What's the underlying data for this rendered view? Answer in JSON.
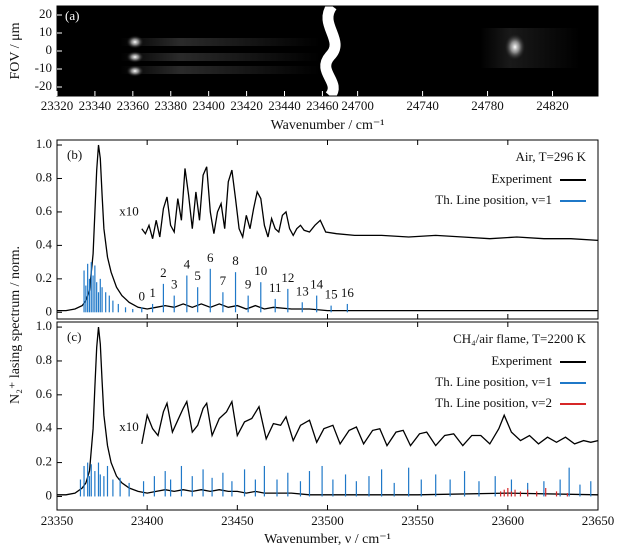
{
  "chart_data": [
    {
      "type": "image",
      "title": "(a)",
      "ylabel": "FOV / μm",
      "xlabel": "Wavenumber / cm⁻¹",
      "xlim": [
        23320,
        23464
      ],
      "xticks": [
        23320,
        23340,
        23360,
        23380,
        23400,
        23420,
        23440,
        23460
      ],
      "x2lim": [
        24683,
        24848
      ],
      "x2ticks": [
        24700,
        24740,
        24780,
        24820
      ],
      "ylim": [
        -25,
        25
      ],
      "yticks": [
        20,
        10,
        0,
        -10,
        -20
      ]
    },
    {
      "type": "line",
      "title": "(b)",
      "ylabel": "N₂⁺ lasing spectrum / norm.",
      "legend_title": "Air, T=296 K",
      "legend": "upper right",
      "xlim": [
        23350,
        23650
      ],
      "ylim": [
        -0.04,
        1.03
      ],
      "yticks": [
        0,
        0.2,
        0.4,
        0.6,
        0.8,
        {
          "value": 1,
          "label": "1.0"
        }
      ],
      "series": [
        {
          "name": "Experiment",
          "color": "#000000",
          "kind": "line",
          "x": [
            23350,
            23355,
            23360,
            23364,
            23366,
            23368,
            23370,
            23371,
            23372,
            23373,
            23374,
            23375,
            23376,
            23378,
            23380,
            23383,
            23386,
            23390,
            23395,
            23400,
            23405,
            23410,
            23415,
            23420,
            23425,
            23430,
            23435,
            23440,
            23445,
            23450,
            23455,
            23460,
            23465,
            23470,
            23480,
            23490,
            23500,
            23520,
            23550,
            23600,
            23650
          ],
          "values": [
            0.01,
            0.01,
            0.02,
            0.04,
            0.07,
            0.13,
            0.35,
            0.6,
            0.85,
            1.0,
            0.92,
            0.7,
            0.5,
            0.33,
            0.24,
            0.15,
            0.1,
            0.06,
            0.03,
            0.02,
            0.03,
            0.04,
            0.03,
            0.05,
            0.03,
            0.05,
            0.03,
            0.05,
            0.03,
            0.04,
            0.02,
            0.04,
            0.02,
            0.03,
            0.02,
            0.02,
            0.01,
            0.01,
            0.01,
            0.01,
            0.01
          ]
        },
        {
          "name": "Th. Line position, v=1",
          "color": "#1f78c8",
          "kind": "stick",
          "x": [
            23365,
            23366,
            23367,
            23368,
            23369,
            23370,
            23371,
            23372,
            23373,
            23374,
            23375,
            23377,
            23379,
            23381,
            23384,
            23388,
            23392,
            23397,
            23403,
            23409,
            23415,
            23422,
            23428,
            23435,
            23442,
            23449,
            23456,
            23463,
            23471,
            23478,
            23486,
            23494,
            23502,
            23511
          ],
          "values": [
            0.25,
            0.16,
            0.29,
            0.2,
            0.3,
            0.22,
            0.28,
            0.18,
            0.12,
            0.2,
            0.15,
            0.12,
            0.1,
            0.07,
            0.05,
            0.03,
            0.02,
            0.03,
            0.05,
            0.17,
            0.1,
            0.22,
            0.15,
            0.26,
            0.12,
            0.24,
            0.1,
            0.18,
            0.08,
            0.14,
            0.06,
            0.1,
            0.04,
            0.05
          ],
          "labels": [
            null,
            null,
            null,
            null,
            null,
            null,
            null,
            null,
            null,
            null,
            null,
            null,
            null,
            null,
            null,
            null,
            null,
            0,
            1,
            2,
            3,
            4,
            5,
            6,
            7,
            8,
            9,
            10,
            11,
            12,
            13,
            14,
            15,
            16
          ]
        }
      ],
      "scaled_trace": {
        "label": "x10",
        "color": "#000000",
        "x": [
          23397,
          23399,
          23401,
          23403,
          23405,
          23407,
          23409,
          23411,
          23413,
          23415,
          23417,
          23419,
          23421,
          23423,
          23425,
          23427,
          23429,
          23431,
          23433,
          23435,
          23437,
          23439,
          23441,
          23443,
          23445,
          23447,
          23449,
          23451,
          23453,
          23455,
          23457,
          23459,
          23461,
          23463,
          23465,
          23467,
          23469,
          23471,
          23473,
          23475,
          23477,
          23479,
          23481,
          23483,
          23485,
          23487,
          23490,
          23493,
          23496,
          23499,
          23505,
          23515,
          23530,
          23545,
          23560,
          23575,
          23590,
          23605,
          23620,
          23635,
          23650
        ],
        "values": [
          0.5,
          0.47,
          0.52,
          0.44,
          0.55,
          0.45,
          0.62,
          0.69,
          0.52,
          0.48,
          0.68,
          0.55,
          0.86,
          0.7,
          0.5,
          0.72,
          0.55,
          0.82,
          0.87,
          0.6,
          0.47,
          0.6,
          0.65,
          0.5,
          0.78,
          0.85,
          0.68,
          0.5,
          0.45,
          0.58,
          0.5,
          0.62,
          0.72,
          0.68,
          0.52,
          0.45,
          0.56,
          0.5,
          0.48,
          0.58,
          0.6,
          0.5,
          0.46,
          0.5,
          0.52,
          0.49,
          0.48,
          0.52,
          0.55,
          0.48,
          0.47,
          0.46,
          0.46,
          0.45,
          0.46,
          0.45,
          0.44,
          0.45,
          0.44,
          0.44,
          0.43
        ]
      }
    },
    {
      "type": "line",
      "title": "(c)",
      "xlabel": "Wavenumber, ν / cm⁻¹",
      "legend_title": "CH₄/air flame, T=2200 K",
      "legend": "upper right",
      "xlim": [
        23350,
        23650
      ],
      "xticks": [
        23350,
        23400,
        23450,
        23500,
        23550,
        23600,
        23650
      ],
      "ylim": [
        -0.08,
        1.03
      ],
      "yticks": [
        0,
        0.2,
        0.4,
        0.6,
        0.8,
        {
          "value": 1,
          "label": "1.0"
        }
      ],
      "series": [
        {
          "name": "Experiment",
          "color": "#000000",
          "kind": "line",
          "x": [
            23350,
            23355,
            23360,
            23364,
            23366,
            23368,
            23370,
            23371,
            23372,
            23373,
            23374,
            23375,
            23376,
            23378,
            23380,
            23383,
            23386,
            23390,
            23395,
            23400,
            23405,
            23410,
            23415,
            23420,
            23425,
            23430,
            23435,
            23440,
            23445,
            23450,
            23455,
            23460,
            23465,
            23470,
            23480,
            23490,
            23500,
            23520,
            23550,
            23600,
            23650
          ],
          "values": [
            0.01,
            0.01,
            0.02,
            0.05,
            0.08,
            0.15,
            0.4,
            0.65,
            0.88,
            1.0,
            0.9,
            0.68,
            0.48,
            0.3,
            0.2,
            0.12,
            0.08,
            0.05,
            0.03,
            0.02,
            0.03,
            0.04,
            0.03,
            0.04,
            0.03,
            0.04,
            0.03,
            0.04,
            0.03,
            0.03,
            0.02,
            0.03,
            0.02,
            0.02,
            0.02,
            0.01,
            0.01,
            0.01,
            0.01,
            0.02,
            0.01
          ]
        },
        {
          "name": "Th. Line position, v=1",
          "color": "#1f78c8",
          "kind": "stick",
          "x": [
            23363,
            23365,
            23367,
            23368,
            23369,
            23371,
            23373,
            23374,
            23376,
            23378,
            23381,
            23385,
            23390,
            23398,
            23404,
            23410,
            23413,
            23419,
            23425,
            23431,
            23436,
            23442,
            23447,
            23454,
            23460,
            23465,
            23472,
            23478,
            23485,
            23490,
            23497,
            23503,
            23510,
            23516,
            23523,
            23530,
            23537,
            23545,
            23552,
            23560,
            23568,
            23576,
            23584,
            23593,
            23602,
            23611,
            23620,
            23629,
            23634,
            23640,
            23646
          ],
          "values": [
            0.1,
            0.18,
            0.2,
            0.12,
            0.19,
            0.15,
            0.2,
            0.13,
            0.12,
            0.18,
            0.1,
            0.11,
            0.08,
            0.09,
            0.12,
            0.15,
            0.1,
            0.18,
            0.12,
            0.16,
            0.11,
            0.14,
            0.09,
            0.16,
            0.1,
            0.18,
            0.1,
            0.14,
            0.09,
            0.15,
            0.18,
            0.1,
            0.13,
            0.09,
            0.12,
            0.16,
            0.08,
            0.17,
            0.1,
            0.13,
            0.1,
            0.15,
            0.09,
            0.12,
            0.1,
            0.08,
            0.09,
            0.1,
            0.17,
            0.07,
            0.09
          ]
        },
        {
          "name": "Th. Line position, v=2",
          "color": "#d62728",
          "kind": "stick",
          "x": [
            23596,
            23598,
            23600,
            23602,
            23604,
            23607,
            23611,
            23616,
            23621,
            23627,
            23633
          ],
          "values": [
            0.03,
            0.04,
            0.05,
            0.03,
            0.04,
            0.03,
            0.04,
            0.03,
            0.05,
            0.03,
            0.02
          ]
        }
      ],
      "scaled_trace": {
        "label": "x10",
        "color": "#000000",
        "x": [
          23397,
          23400,
          23403,
          23406,
          23409,
          23411,
          23414,
          23417,
          23420,
          23422,
          23425,
          23428,
          23431,
          23433,
          23436,
          23440,
          23444,
          23447,
          23450,
          23454,
          23458,
          23462,
          23466,
          23470,
          23474,
          23477,
          23481,
          23485,
          23490,
          23494,
          23498,
          23503,
          23507,
          23512,
          23516,
          23520,
          23525,
          23529,
          23533,
          23538,
          23542,
          23546,
          23551,
          23555,
          23560,
          23565,
          23570,
          23575,
          23580,
          23585,
          23590,
          23595,
          23598,
          23602,
          23607,
          23612,
          23617,
          23622,
          23627,
          23632,
          23637,
          23642,
          23646,
          23650
        ],
        "values": [
          0.31,
          0.48,
          0.4,
          0.36,
          0.5,
          0.55,
          0.38,
          0.45,
          0.52,
          0.56,
          0.38,
          0.42,
          0.52,
          0.55,
          0.36,
          0.46,
          0.5,
          0.56,
          0.36,
          0.44,
          0.46,
          0.53,
          0.34,
          0.43,
          0.42,
          0.47,
          0.33,
          0.42,
          0.45,
          0.32,
          0.4,
          0.42,
          0.31,
          0.39,
          0.41,
          0.31,
          0.39,
          0.4,
          0.3,
          0.38,
          0.39,
          0.3,
          0.37,
          0.38,
          0.3,
          0.36,
          0.37,
          0.3,
          0.36,
          0.36,
          0.31,
          0.4,
          0.48,
          0.38,
          0.33,
          0.36,
          0.31,
          0.35,
          0.32,
          0.35,
          0.31,
          0.33,
          0.32,
          0.33
        ]
      }
    }
  ]
}
